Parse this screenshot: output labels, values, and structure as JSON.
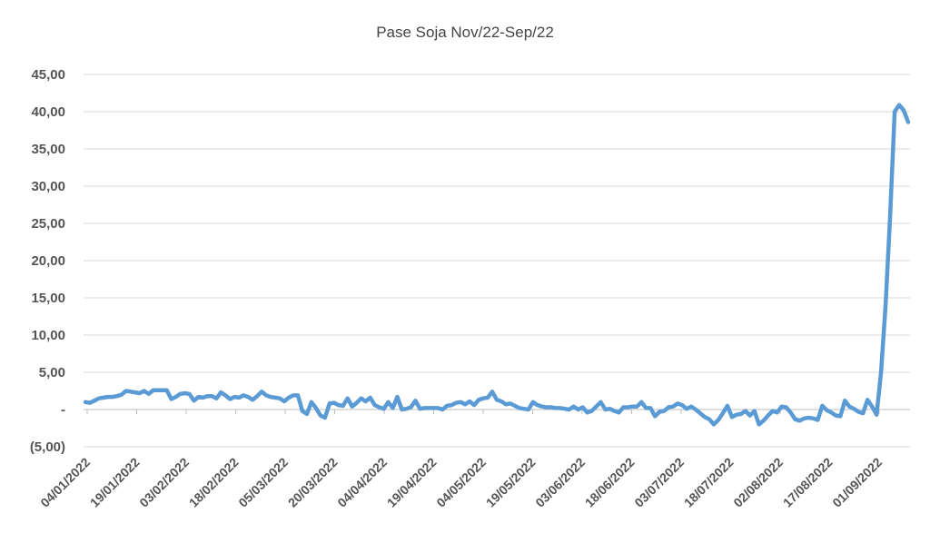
{
  "chart_data": {
    "type": "line",
    "title": "Pase Soja Nov/22-Sep/22",
    "xlabel": "",
    "ylabel": "",
    "ylim": [
      -5,
      45
    ],
    "yticks": [
      {
        "value": 45,
        "label": "45,00"
      },
      {
        "value": 40,
        "label": "40,00"
      },
      {
        "value": 35,
        "label": "35,00"
      },
      {
        "value": 30,
        "label": "30,00"
      },
      {
        "value": 25,
        "label": "25,00"
      },
      {
        "value": 20,
        "label": "20,00"
      },
      {
        "value": 15,
        "label": "15,00"
      },
      {
        "value": 10,
        "label": "10,00"
      },
      {
        "value": 5,
        "label": "5,00"
      },
      {
        "value": 0,
        "label": "-"
      },
      {
        "value": -5,
        "label": "(5,00)"
      }
    ],
    "xticks": [
      "04/01/2022",
      "19/01/2022",
      "03/02/2022",
      "18/02/2022",
      "05/03/2022",
      "20/03/2022",
      "04/04/2022",
      "19/04/2022",
      "04/05/2022",
      "19/05/2022",
      "03/06/2022",
      "18/06/2022",
      "03/07/2022",
      "18/07/2022",
      "02/08/2022",
      "17/08/2022",
      "01/09/2022"
    ],
    "grid": true,
    "line_color": "#5b9bd5",
    "series": [
      {
        "values": [
          1.0,
          0.9,
          1.2,
          1.5,
          1.6,
          1.7,
          1.7,
          1.8,
          2.0,
          2.5,
          2.4,
          2.3,
          2.2,
          2.5,
          2.1,
          2.6,
          2.6,
          2.6,
          2.6,
          1.4,
          1.7,
          2.1,
          2.2,
          2.1,
          1.2,
          1.7,
          1.6,
          1.8,
          1.8,
          1.5,
          2.3,
          1.9,
          1.4,
          1.7,
          1.6,
          1.9,
          1.7,
          1.3,
          1.8,
          2.4,
          1.9,
          1.7,
          1.6,
          1.5,
          1.1,
          1.6,
          1.9,
          1.9,
          -0.2,
          -0.6,
          1.0,
          0.2,
          -0.8,
          -1.1,
          0.8,
          0.9,
          0.6,
          0.5,
          1.5,
          0.4,
          0.9,
          1.5,
          1.1,
          1.6,
          0.6,
          0.3,
          0.1,
          1.0,
          0.2,
          1.7,
          0.0,
          0.1,
          0.3,
          1.2,
          0.1,
          0.2,
          0.2,
          0.2,
          0.2,
          0.0,
          0.5,
          0.6,
          0.9,
          1.0,
          0.7,
          1.1,
          0.6,
          1.3,
          1.5,
          1.6,
          2.4,
          1.3,
          1.1,
          0.7,
          0.8,
          0.5,
          0.2,
          0.1,
          0.0,
          1.0,
          0.6,
          0.4,
          0.3,
          0.3,
          0.2,
          0.2,
          0.1,
          0.0,
          0.4,
          0.0,
          0.3,
          -0.4,
          -0.2,
          0.4,
          1.0,
          0.0,
          0.1,
          -0.2,
          -0.4,
          0.3,
          0.3,
          0.4,
          0.4,
          1.0,
          0.2,
          0.2,
          -0.9,
          -0.3,
          -0.2,
          0.3,
          0.4,
          0.8,
          0.6,
          0.1,
          0.4,
          0.0,
          -0.5,
          -1.0,
          -1.3,
          -2.0,
          -1.4,
          -0.5,
          0.5,
          -1.0,
          -0.7,
          -0.6,
          -0.2,
          -0.8,
          -0.2,
          -2.0,
          -1.5,
          -0.8,
          -0.2,
          -0.4,
          0.4,
          0.3,
          -0.4,
          -1.3,
          -1.5,
          -1.2,
          -1.1,
          -1.2,
          -1.4,
          0.5,
          -0.1,
          -0.4,
          -0.8,
          -0.9,
          1.2,
          0.4,
          0.1,
          -0.3,
          -0.5,
          1.3,
          0.4,
          -0.7,
          5.0,
          14.0,
          26.0,
          40.0,
          40.9,
          40.2,
          38.6
        ]
      }
    ]
  }
}
